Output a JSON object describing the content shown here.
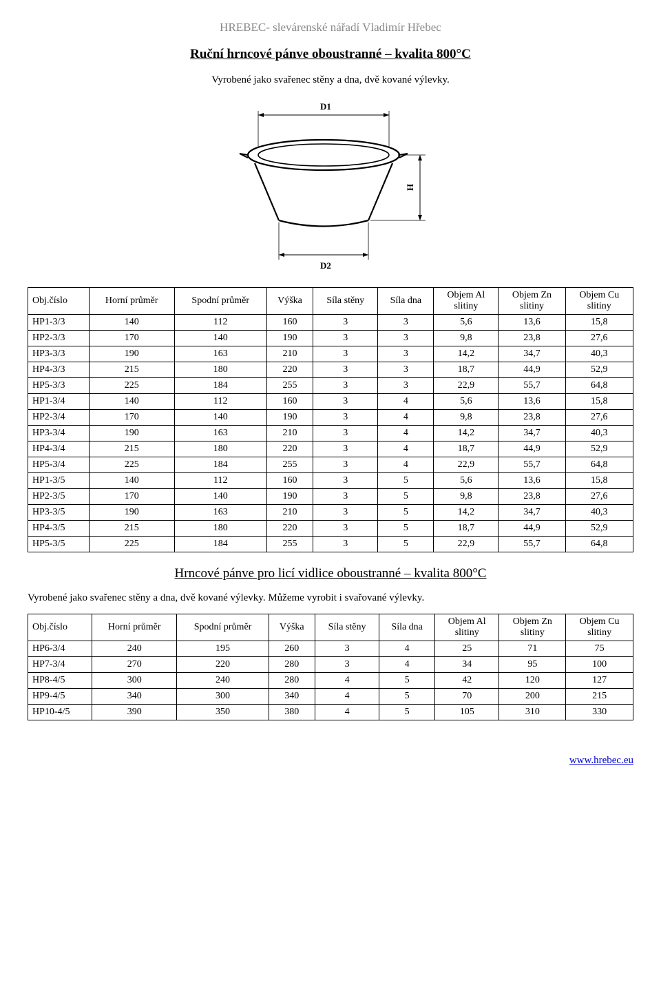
{
  "header": "HREBEC- slevárenské nářadí Vladimír Hřebec",
  "section1": {
    "title": "Ruční hrncové pánve oboustranné – kvalita 800°C",
    "subtitle": "Vyrobené jako svařenec stěny a dna, dvě kované výlevky."
  },
  "diagram": {
    "labels": {
      "d1": "D1",
      "d2": "D2",
      "h": "H"
    },
    "stroke": "#000000",
    "fill": "#ffffff"
  },
  "table1": {
    "columns": [
      "Obj.číslo",
      "Horní průměr",
      "Spodní průměr",
      "Výška",
      "Síla stěny",
      "Síla dna",
      "Objem Al slitiny",
      "Objem Zn slitiny",
      "Objem Cu slitiny"
    ],
    "rows": [
      [
        "HP1-3/3",
        "140",
        "112",
        "160",
        "3",
        "3",
        "5,6",
        "13,6",
        "15,8"
      ],
      [
        "HP2-3/3",
        "170",
        "140",
        "190",
        "3",
        "3",
        "9,8",
        "23,8",
        "27,6"
      ],
      [
        "HP3-3/3",
        "190",
        "163",
        "210",
        "3",
        "3",
        "14,2",
        "34,7",
        "40,3"
      ],
      [
        "HP4-3/3",
        "215",
        "180",
        "220",
        "3",
        "3",
        "18,7",
        "44,9",
        "52,9"
      ],
      [
        "HP5-3/3",
        "225",
        "184",
        "255",
        "3",
        "3",
        "22,9",
        "55,7",
        "64,8"
      ],
      [
        "HP1-3/4",
        "140",
        "112",
        "160",
        "3",
        "4",
        "5,6",
        "13,6",
        "15,8"
      ],
      [
        "HP2-3/4",
        "170",
        "140",
        "190",
        "3",
        "4",
        "9,8",
        "23,8",
        "27,6"
      ],
      [
        "HP3-3/4",
        "190",
        "163",
        "210",
        "3",
        "4",
        "14,2",
        "34,7",
        "40,3"
      ],
      [
        "HP4-3/4",
        "215",
        "180",
        "220",
        "3",
        "4",
        "18,7",
        "44,9",
        "52,9"
      ],
      [
        "HP5-3/4",
        "225",
        "184",
        "255",
        "3",
        "4",
        "22,9",
        "55,7",
        "64,8"
      ],
      [
        "HP1-3/5",
        "140",
        "112",
        "160",
        "3",
        "5",
        "5,6",
        "13,6",
        "15,8"
      ],
      [
        "HP2-3/5",
        "170",
        "140",
        "190",
        "3",
        "5",
        "9,8",
        "23,8",
        "27,6"
      ],
      [
        "HP3-3/5",
        "190",
        "163",
        "210",
        "3",
        "5",
        "14,2",
        "34,7",
        "40,3"
      ],
      [
        "HP4-3/5",
        "215",
        "180",
        "220",
        "3",
        "5",
        "18,7",
        "44,9",
        "52,9"
      ],
      [
        "HP5-3/5",
        "225",
        "184",
        "255",
        "3",
        "5",
        "22,9",
        "55,7",
        "64,8"
      ]
    ]
  },
  "section2": {
    "title_prefix": "H",
    "title_rest": "rncové pánve pro licí vidlice oboustranné – kvalita 800°C",
    "subtitle": "Vyrobené jako svařenec stěny a dna, dvě kované výlevky. Můžeme vyrobit i svařované výlevky."
  },
  "table2": {
    "columns": [
      "Obj.číslo",
      "Horní průměr",
      "Spodní průměr",
      "Výška",
      "Síla stěny",
      "Síla dna",
      "Objem Al slitiny",
      "Objem Zn slitiny",
      "Objem Cu slitiny"
    ],
    "rows": [
      [
        "HP6-3/4",
        "240",
        "195",
        "260",
        "3",
        "4",
        "25",
        "71",
        "75"
      ],
      [
        "HP7-3/4",
        "270",
        "220",
        "280",
        "3",
        "4",
        "34",
        "95",
        "100"
      ],
      [
        "HP8-4/5",
        "300",
        "240",
        "280",
        "4",
        "5",
        "42",
        "120",
        "127"
      ],
      [
        "HP9-4/5",
        "340",
        "300",
        "340",
        "4",
        "5",
        "70",
        "200",
        "215"
      ],
      [
        "HP10-4/5",
        "390",
        "350",
        "380",
        "4",
        "5",
        "105",
        "310",
        "330"
      ]
    ]
  },
  "footer": "www.hrebec.eu"
}
